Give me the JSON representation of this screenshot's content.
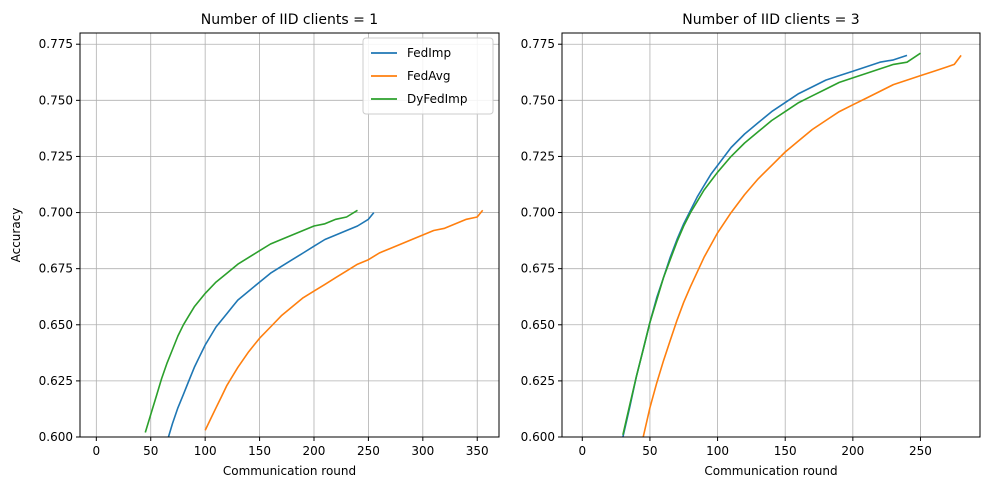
{
  "chart_data": [
    {
      "type": "line",
      "title": "Number of IID clients = 1",
      "xlabel": "Communication round",
      "ylabel": "Accuracy",
      "xlim": [
        -15,
        370
      ],
      "ylim": [
        0.6,
        0.78
      ],
      "xticks": [
        0,
        50,
        100,
        150,
        200,
        250,
        300,
        350
      ],
      "yticks": [
        0.6,
        0.625,
        0.65,
        0.675,
        0.7,
        0.725,
        0.75,
        0.775
      ],
      "xtick_labels": [
        "0",
        "50",
        "100",
        "150",
        "200",
        "250",
        "300",
        "350"
      ],
      "ytick_labels": [
        "0.600",
        "0.625",
        "0.650",
        "0.675",
        "0.700",
        "0.725",
        "0.750",
        "0.775"
      ],
      "grid": true,
      "legend": "top-right",
      "series": [
        {
          "name": "FedImp",
          "color": "#1f77b4",
          "x": [
            65,
            70,
            75,
            80,
            85,
            90,
            95,
            100,
            105,
            110,
            115,
            120,
            125,
            130,
            140,
            150,
            160,
            170,
            180,
            190,
            200,
            210,
            220,
            230,
            240,
            250,
            255
          ],
          "y": [
            0.598,
            0.606,
            0.613,
            0.619,
            0.625,
            0.631,
            0.636,
            0.641,
            0.645,
            0.649,
            0.652,
            0.655,
            0.658,
            0.661,
            0.665,
            0.669,
            0.673,
            0.676,
            0.679,
            0.682,
            0.685,
            0.688,
            0.69,
            0.692,
            0.694,
            0.697,
            0.7
          ]
        },
        {
          "name": "FedAvg",
          "color": "#ff7f0e",
          "x": [
            100,
            105,
            110,
            115,
            120,
            130,
            140,
            150,
            160,
            170,
            180,
            190,
            200,
            210,
            220,
            230,
            240,
            250,
            260,
            270,
            280,
            290,
            300,
            310,
            320,
            330,
            340,
            350,
            355
          ],
          "y": [
            0.603,
            0.608,
            0.613,
            0.618,
            0.623,
            0.631,
            0.638,
            0.644,
            0.649,
            0.654,
            0.658,
            0.662,
            0.665,
            0.668,
            0.671,
            0.674,
            0.677,
            0.679,
            0.682,
            0.684,
            0.686,
            0.688,
            0.69,
            0.692,
            0.693,
            0.695,
            0.697,
            0.698,
            0.701
          ]
        },
        {
          "name": "DyFedImp",
          "color": "#2ca02c",
          "x": [
            45,
            50,
            55,
            60,
            65,
            70,
            75,
            80,
            85,
            90,
            95,
            100,
            110,
            120,
            130,
            140,
            150,
            160,
            170,
            180,
            190,
            200,
            210,
            220,
            230,
            240
          ],
          "y": [
            0.602,
            0.61,
            0.618,
            0.626,
            0.633,
            0.639,
            0.645,
            0.65,
            0.654,
            0.658,
            0.661,
            0.664,
            0.669,
            0.673,
            0.677,
            0.68,
            0.683,
            0.686,
            0.688,
            0.69,
            0.692,
            0.694,
            0.695,
            0.697,
            0.698,
            0.701
          ]
        }
      ]
    },
    {
      "type": "line",
      "title": "Number of IID clients = 3",
      "xlabel": "Communication round",
      "ylabel": "",
      "xlim": [
        -15,
        294
      ],
      "ylim": [
        0.6,
        0.78
      ],
      "xticks": [
        0,
        50,
        100,
        150,
        200,
        250
      ],
      "yticks": [
        0.6,
        0.625,
        0.65,
        0.675,
        0.7,
        0.725,
        0.75,
        0.775
      ],
      "xtick_labels": [
        "0",
        "50",
        "100",
        "150",
        "200",
        "250"
      ],
      "ytick_labels": [
        "0.600",
        "0.625",
        "0.650",
        "0.675",
        "0.700",
        "0.725",
        "0.750",
        "0.775"
      ],
      "grid": true,
      "legend": "none",
      "series": [
        {
          "name": "FedImp",
          "color": "#1f77b4",
          "x": [
            30,
            35,
            40,
            45,
            50,
            55,
            60,
            65,
            70,
            75,
            80,
            85,
            90,
            95,
            100,
            110,
            120,
            130,
            140,
            150,
            160,
            170,
            180,
            190,
            200,
            210,
            220,
            230,
            240
          ],
          "y": [
            0.6,
            0.613,
            0.627,
            0.639,
            0.651,
            0.662,
            0.671,
            0.68,
            0.688,
            0.695,
            0.701,
            0.707,
            0.712,
            0.717,
            0.721,
            0.729,
            0.735,
            0.74,
            0.745,
            0.749,
            0.753,
            0.756,
            0.759,
            0.761,
            0.763,
            0.765,
            0.767,
            0.768,
            0.77
          ]
        },
        {
          "name": "FedAvg",
          "color": "#ff7f0e",
          "x": [
            45,
            50,
            55,
            60,
            65,
            70,
            75,
            80,
            90,
            100,
            110,
            120,
            130,
            140,
            150,
            160,
            170,
            180,
            190,
            200,
            210,
            220,
            230,
            240,
            250,
            260,
            270,
            275,
            280
          ],
          "y": [
            0.6,
            0.613,
            0.624,
            0.634,
            0.643,
            0.652,
            0.66,
            0.667,
            0.68,
            0.691,
            0.7,
            0.708,
            0.715,
            0.721,
            0.727,
            0.732,
            0.737,
            0.741,
            0.745,
            0.748,
            0.751,
            0.754,
            0.757,
            0.759,
            0.761,
            0.763,
            0.765,
            0.766,
            0.77
          ]
        },
        {
          "name": "DyFedImp",
          "color": "#2ca02c",
          "x": [
            30,
            35,
            40,
            45,
            50,
            55,
            60,
            65,
            70,
            75,
            80,
            85,
            90,
            95,
            100,
            110,
            120,
            130,
            140,
            150,
            160,
            170,
            180,
            190,
            200,
            210,
            220,
            230,
            240,
            250
          ],
          "y": [
            0.601,
            0.614,
            0.627,
            0.639,
            0.651,
            0.661,
            0.671,
            0.679,
            0.687,
            0.694,
            0.7,
            0.705,
            0.71,
            0.714,
            0.718,
            0.725,
            0.731,
            0.736,
            0.741,
            0.745,
            0.749,
            0.752,
            0.755,
            0.758,
            0.76,
            0.762,
            0.764,
            0.766,
            0.767,
            0.771
          ]
        }
      ]
    }
  ]
}
